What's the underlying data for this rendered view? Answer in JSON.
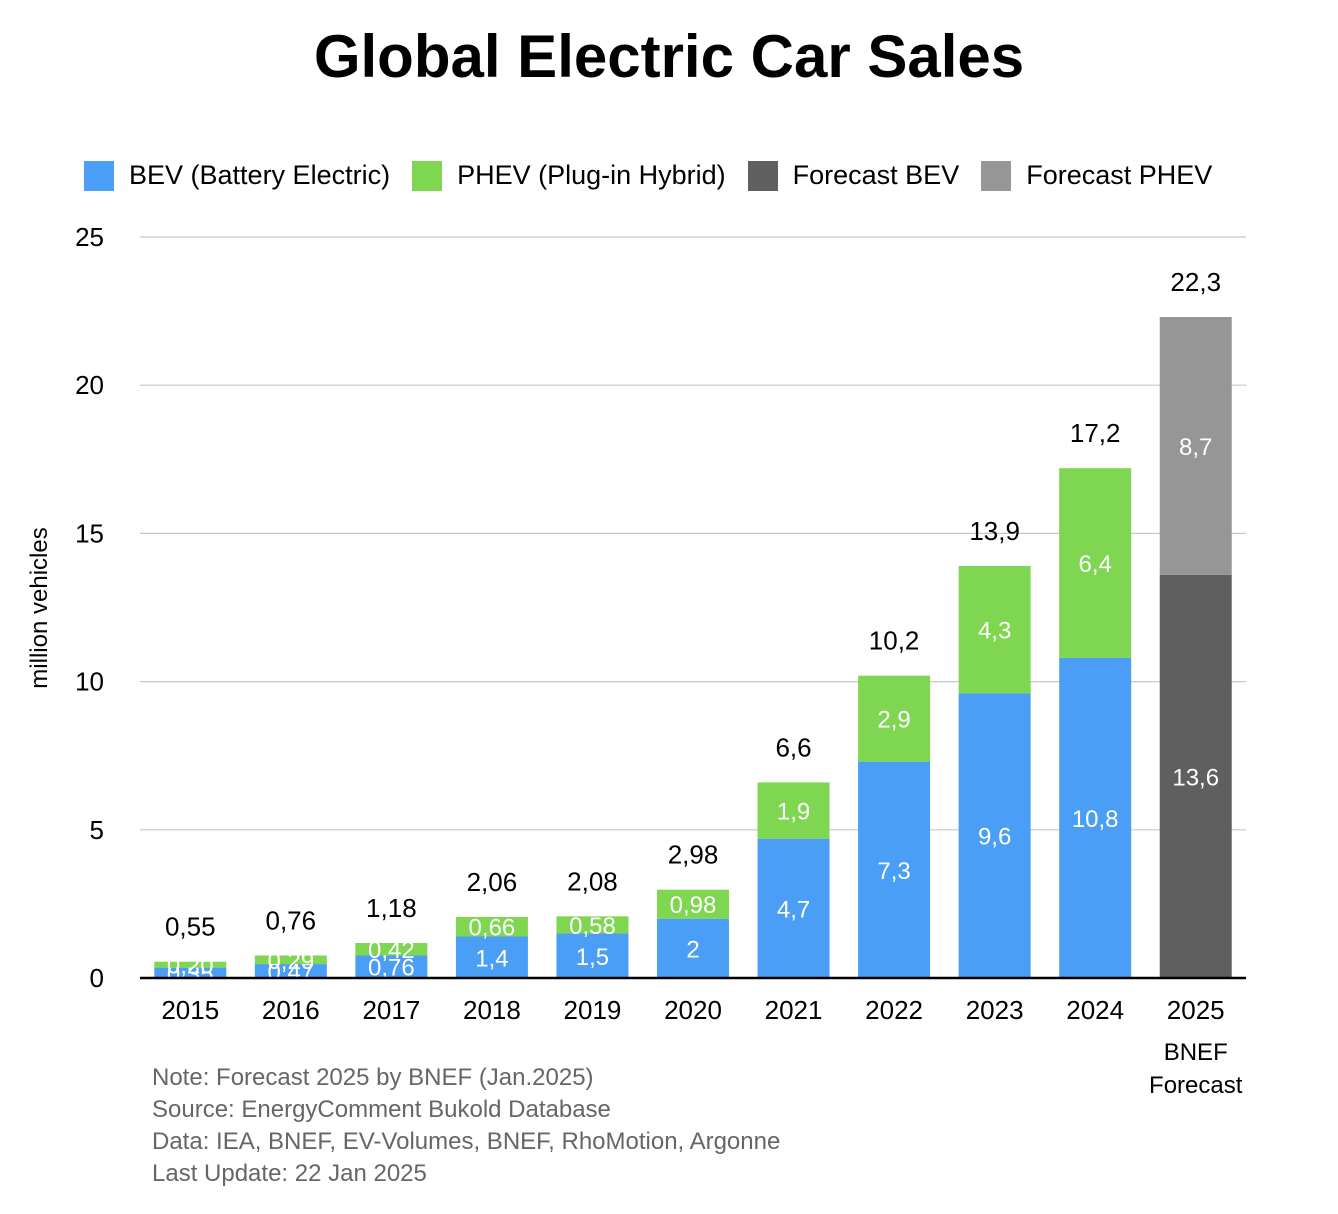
{
  "chart_data": {
    "type": "bar",
    "stacked": true,
    "title": "Global Electric Car Sales",
    "ylabel": "million vehicles",
    "xlabel": "",
    "ylim": [
      0,
      25
    ],
    "yticks": [
      "0",
      "5",
      "10",
      "15",
      "20",
      "25"
    ],
    "ytick_values": [
      0,
      5,
      10,
      15,
      20,
      25
    ],
    "grid": true,
    "categories": [
      "2015",
      "2016",
      "2017",
      "2018",
      "2019",
      "2020",
      "2021",
      "2022",
      "2023",
      "2024",
      "2025"
    ],
    "category_sublabel": {
      "index": 10,
      "lines": [
        "BNEF",
        "Forecast"
      ]
    },
    "legend_position": "top",
    "series": [
      {
        "name": "BEV (Battery Electric)",
        "color": "#4a9ef5",
        "values": [
          0.35,
          0.47,
          0.76,
          1.4,
          1.5,
          2,
          4.7,
          7.3,
          9.6,
          10.8,
          null
        ],
        "labels": [
          "0,35",
          "0,47",
          "0,76",
          "1,4",
          "1,5",
          "2",
          "4,7",
          "7,3",
          "9,6",
          "10,8",
          ""
        ]
      },
      {
        "name": "PHEV (Plug-in Hybrid)",
        "color": "#7fd650",
        "values": [
          0.2,
          0.29,
          0.42,
          0.66,
          0.58,
          0.98,
          1.9,
          2.9,
          4.3,
          6.4,
          null
        ],
        "labels": [
          "0,20",
          "0,29",
          "0,42",
          "0,66",
          "0,58",
          "0,98",
          "1,9",
          "2,9",
          "4,3",
          "6,4",
          ""
        ]
      },
      {
        "name": "Forecast BEV",
        "color": "#5f5f5f",
        "values": [
          null,
          null,
          null,
          null,
          null,
          null,
          null,
          null,
          null,
          null,
          13.6
        ],
        "labels": [
          "",
          "",
          "",
          "",
          "",
          "",
          "",
          "",
          "",
          "",
          "13,6"
        ]
      },
      {
        "name": "Forecast PHEV",
        "color": "#969696",
        "values": [
          null,
          null,
          null,
          null,
          null,
          null,
          null,
          null,
          null,
          null,
          8.7
        ],
        "labels": [
          "",
          "",
          "",
          "",
          "",
          "",
          "",
          "",
          "",
          "",
          "8,7"
        ]
      }
    ],
    "totals": [
      0.55,
      0.76,
      1.18,
      2.06,
      2.08,
      2.98,
      6.6,
      10.2,
      13.9,
      17.2,
      22.3
    ],
    "total_labels": [
      "0,55",
      "0,76",
      "1,18",
      "2,06",
      "2,08",
      "2,98",
      "6,6",
      "10,2",
      "13,9",
      "17,2",
      "22,3"
    ]
  },
  "notes": [
    "Note: Forecast 2025 by BNEF (Jan.2025)",
    "Source: EnergyComment Bukold Database",
    "Data: IEA, BNEF, EV-Volumes, BNEF, RhoMotion, Argonne",
    "Last Update: 22 Jan 2025"
  ]
}
